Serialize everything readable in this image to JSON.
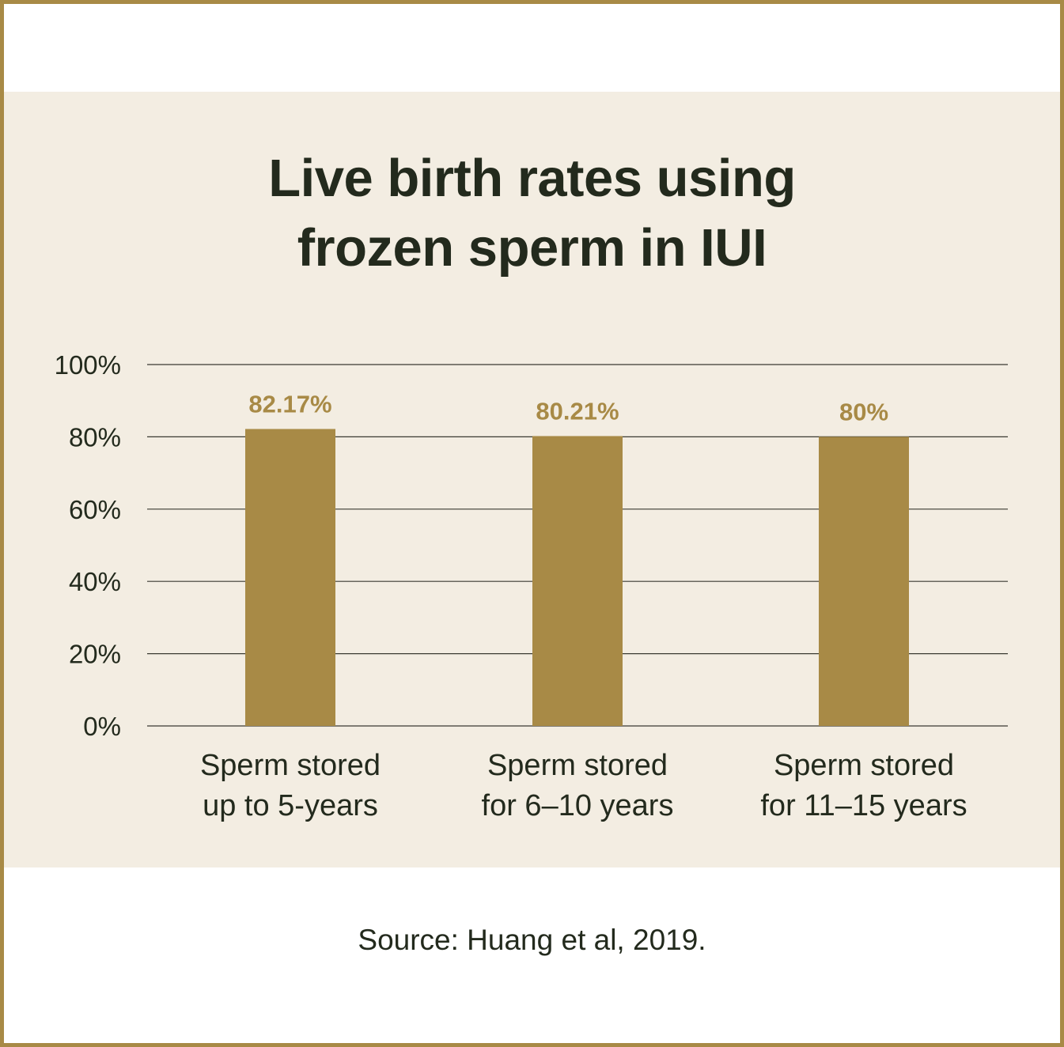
{
  "chart_data": {
    "type": "bar",
    "title_lines": [
      "Live birth rates using",
      "frozen sperm in IUI"
    ],
    "categories": [
      [
        "Sperm stored",
        "up to 5-years"
      ],
      [
        "Sperm stored",
        "for 6–10 years"
      ],
      [
        "Sperm stored",
        "for 11–15 years"
      ]
    ],
    "values": [
      82.17,
      80.21,
      80
    ],
    "value_labels": [
      "82.17%",
      "80.21%",
      "80%"
    ],
    "yticks": [
      0,
      20,
      40,
      60,
      80,
      100
    ],
    "ytick_labels": [
      "0%",
      "20%",
      "40%",
      "60%",
      "80%",
      "100%"
    ],
    "ylim": [
      0,
      100
    ],
    "xlabel": "",
    "ylabel": "",
    "grid": true,
    "bar_color": "#a88a46"
  },
  "source": "Source: Huang et al, 2019.",
  "colors": {
    "border": "#a88a46",
    "panel": "#f3ede2",
    "text": "#232a1d",
    "gridline": "#3a3a32"
  }
}
